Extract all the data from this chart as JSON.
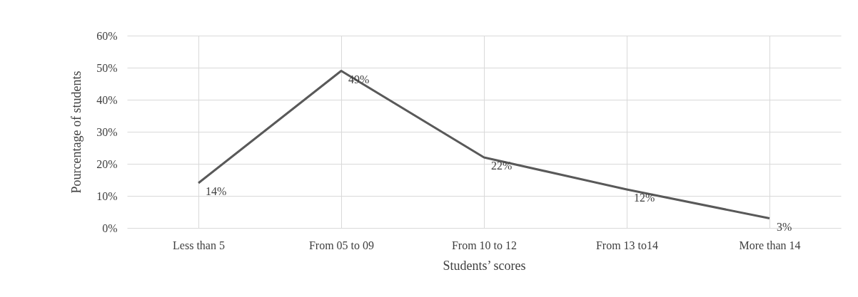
{
  "chart_data": {
    "type": "line",
    "xlabel": "Students’ scores",
    "ylabel": "Pourcentage of students",
    "categories": [
      "Less than 5",
      "From 05 to 09",
      "From 10 to 12",
      "From 13 to14",
      "More than 14"
    ],
    "values": [
      14,
      49,
      22,
      12,
      3
    ],
    "value_labels": [
      "14%",
      "49%",
      "22%",
      "12%",
      "3%"
    ],
    "color": "#595959",
    "ylim": [
      0,
      60
    ],
    "yticks": [
      {
        "value": 0,
        "label": "0%"
      },
      {
        "value": 10,
        "label": "10%"
      },
      {
        "value": 20,
        "label": "20%"
      },
      {
        "value": 30,
        "label": "30%"
      },
      {
        "value": 40,
        "label": "40%"
      },
      {
        "value": 50,
        "label": "50%"
      },
      {
        "value": 60,
        "label": "60%"
      }
    ],
    "grid": true,
    "marker": "none",
    "line_style": "solid"
  }
}
